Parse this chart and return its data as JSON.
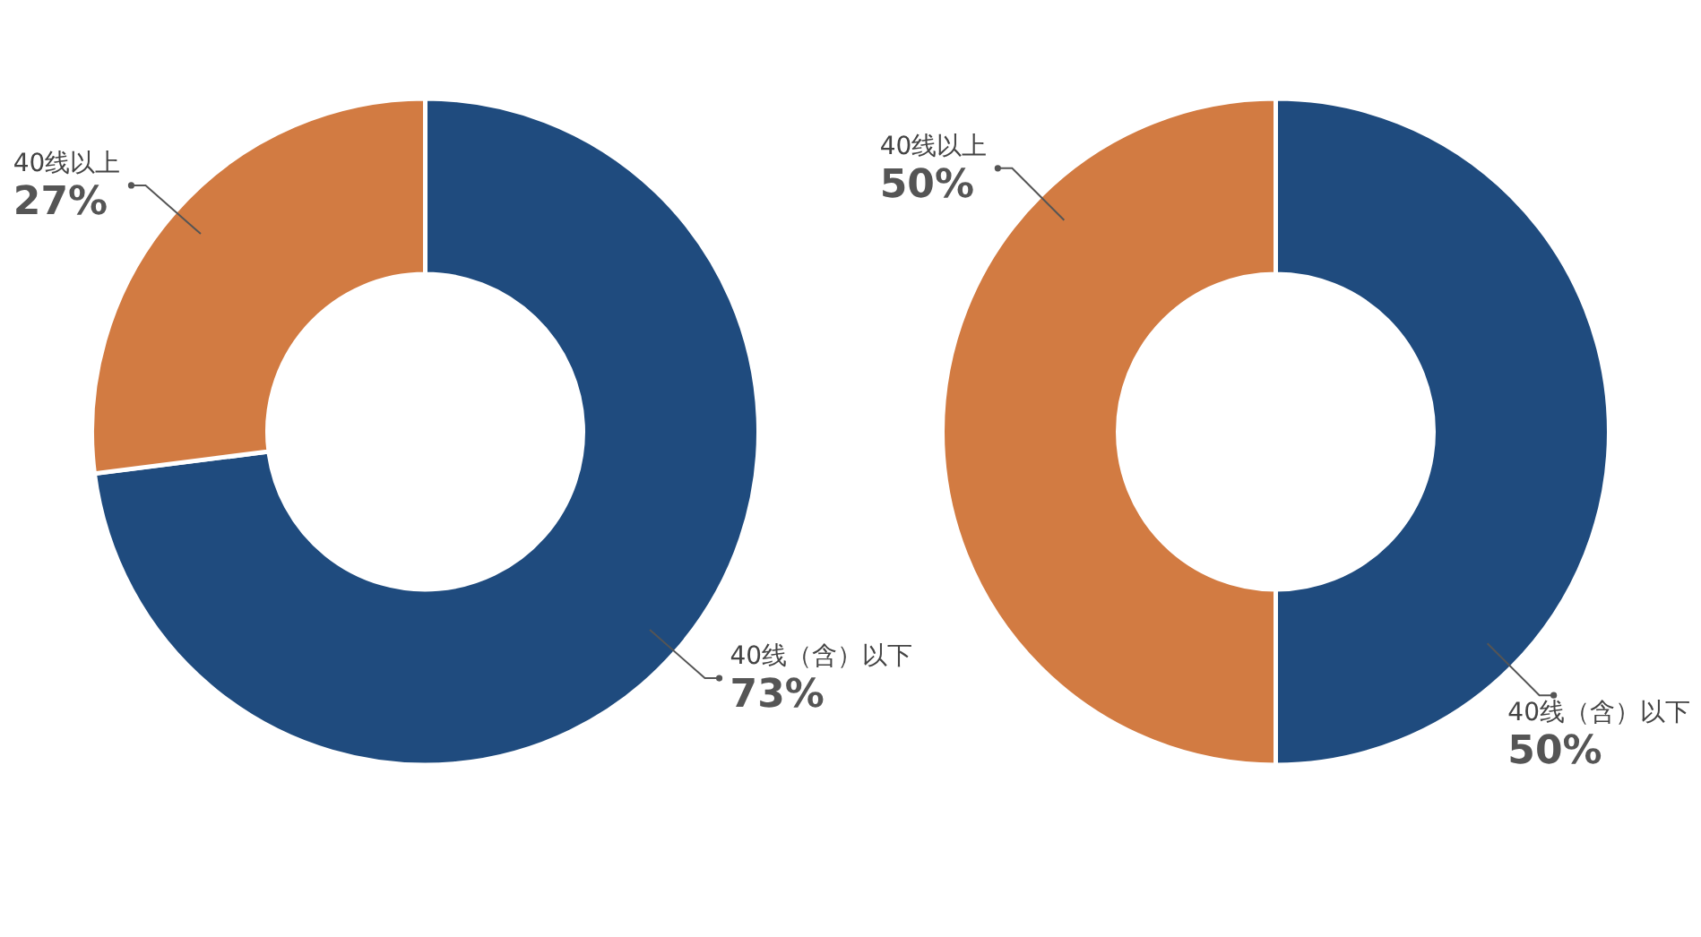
{
  "chart_data": [
    {
      "type": "donut",
      "categories": [
        "40线（含）以下",
        "40线以上"
      ],
      "values": [
        73,
        27
      ],
      "colors": [
        "#1f4b7e",
        "#d27b42"
      ],
      "value_labels": [
        "73%",
        "27%"
      ]
    },
    {
      "type": "donut",
      "categories": [
        "40线（含）以下",
        "40线以上"
      ],
      "values": [
        50,
        50
      ],
      "colors": [
        "#1f4b7e",
        "#d27b42"
      ],
      "value_labels": [
        "50%",
        "50%"
      ]
    }
  ]
}
